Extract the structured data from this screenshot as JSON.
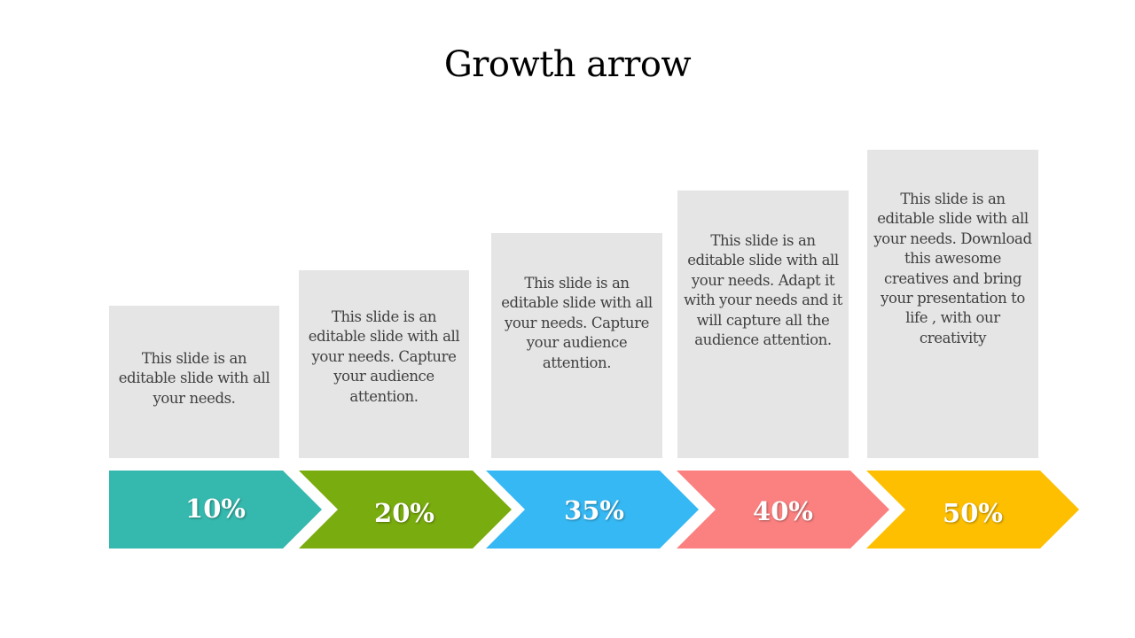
{
  "title": "Growth arrow",
  "steps": [
    {
      "percent": "10%",
      "color": "#35b8ad",
      "text": "This slide is an\neditable slide with all\nyour needs."
    },
    {
      "percent": "20%",
      "color": "#79ac0e",
      "text": "This slide is an\neditable slide with all\nyour needs. Capture\nyour audience\nattention."
    },
    {
      "percent": "35%",
      "color": "#35b8f3",
      "text": "This slide is an\neditable slide with all\nyour needs. Capture\nyour audience\nattention."
    },
    {
      "percent": "40%",
      "color": "#fb8080",
      "text": "This slide is an\neditable slide with all\nyour needs. Adapt it\nwith your needs and it\nwill capture all the\naudience attention."
    },
    {
      "percent": "50%",
      "color": "#fdbf00",
      "text": "This slide is an\neditable slide with all\nyour needs. Download\nthis awesome\ncreatives and bring\nyour presentation to\nlife , with our\ncreativity"
    }
  ]
}
